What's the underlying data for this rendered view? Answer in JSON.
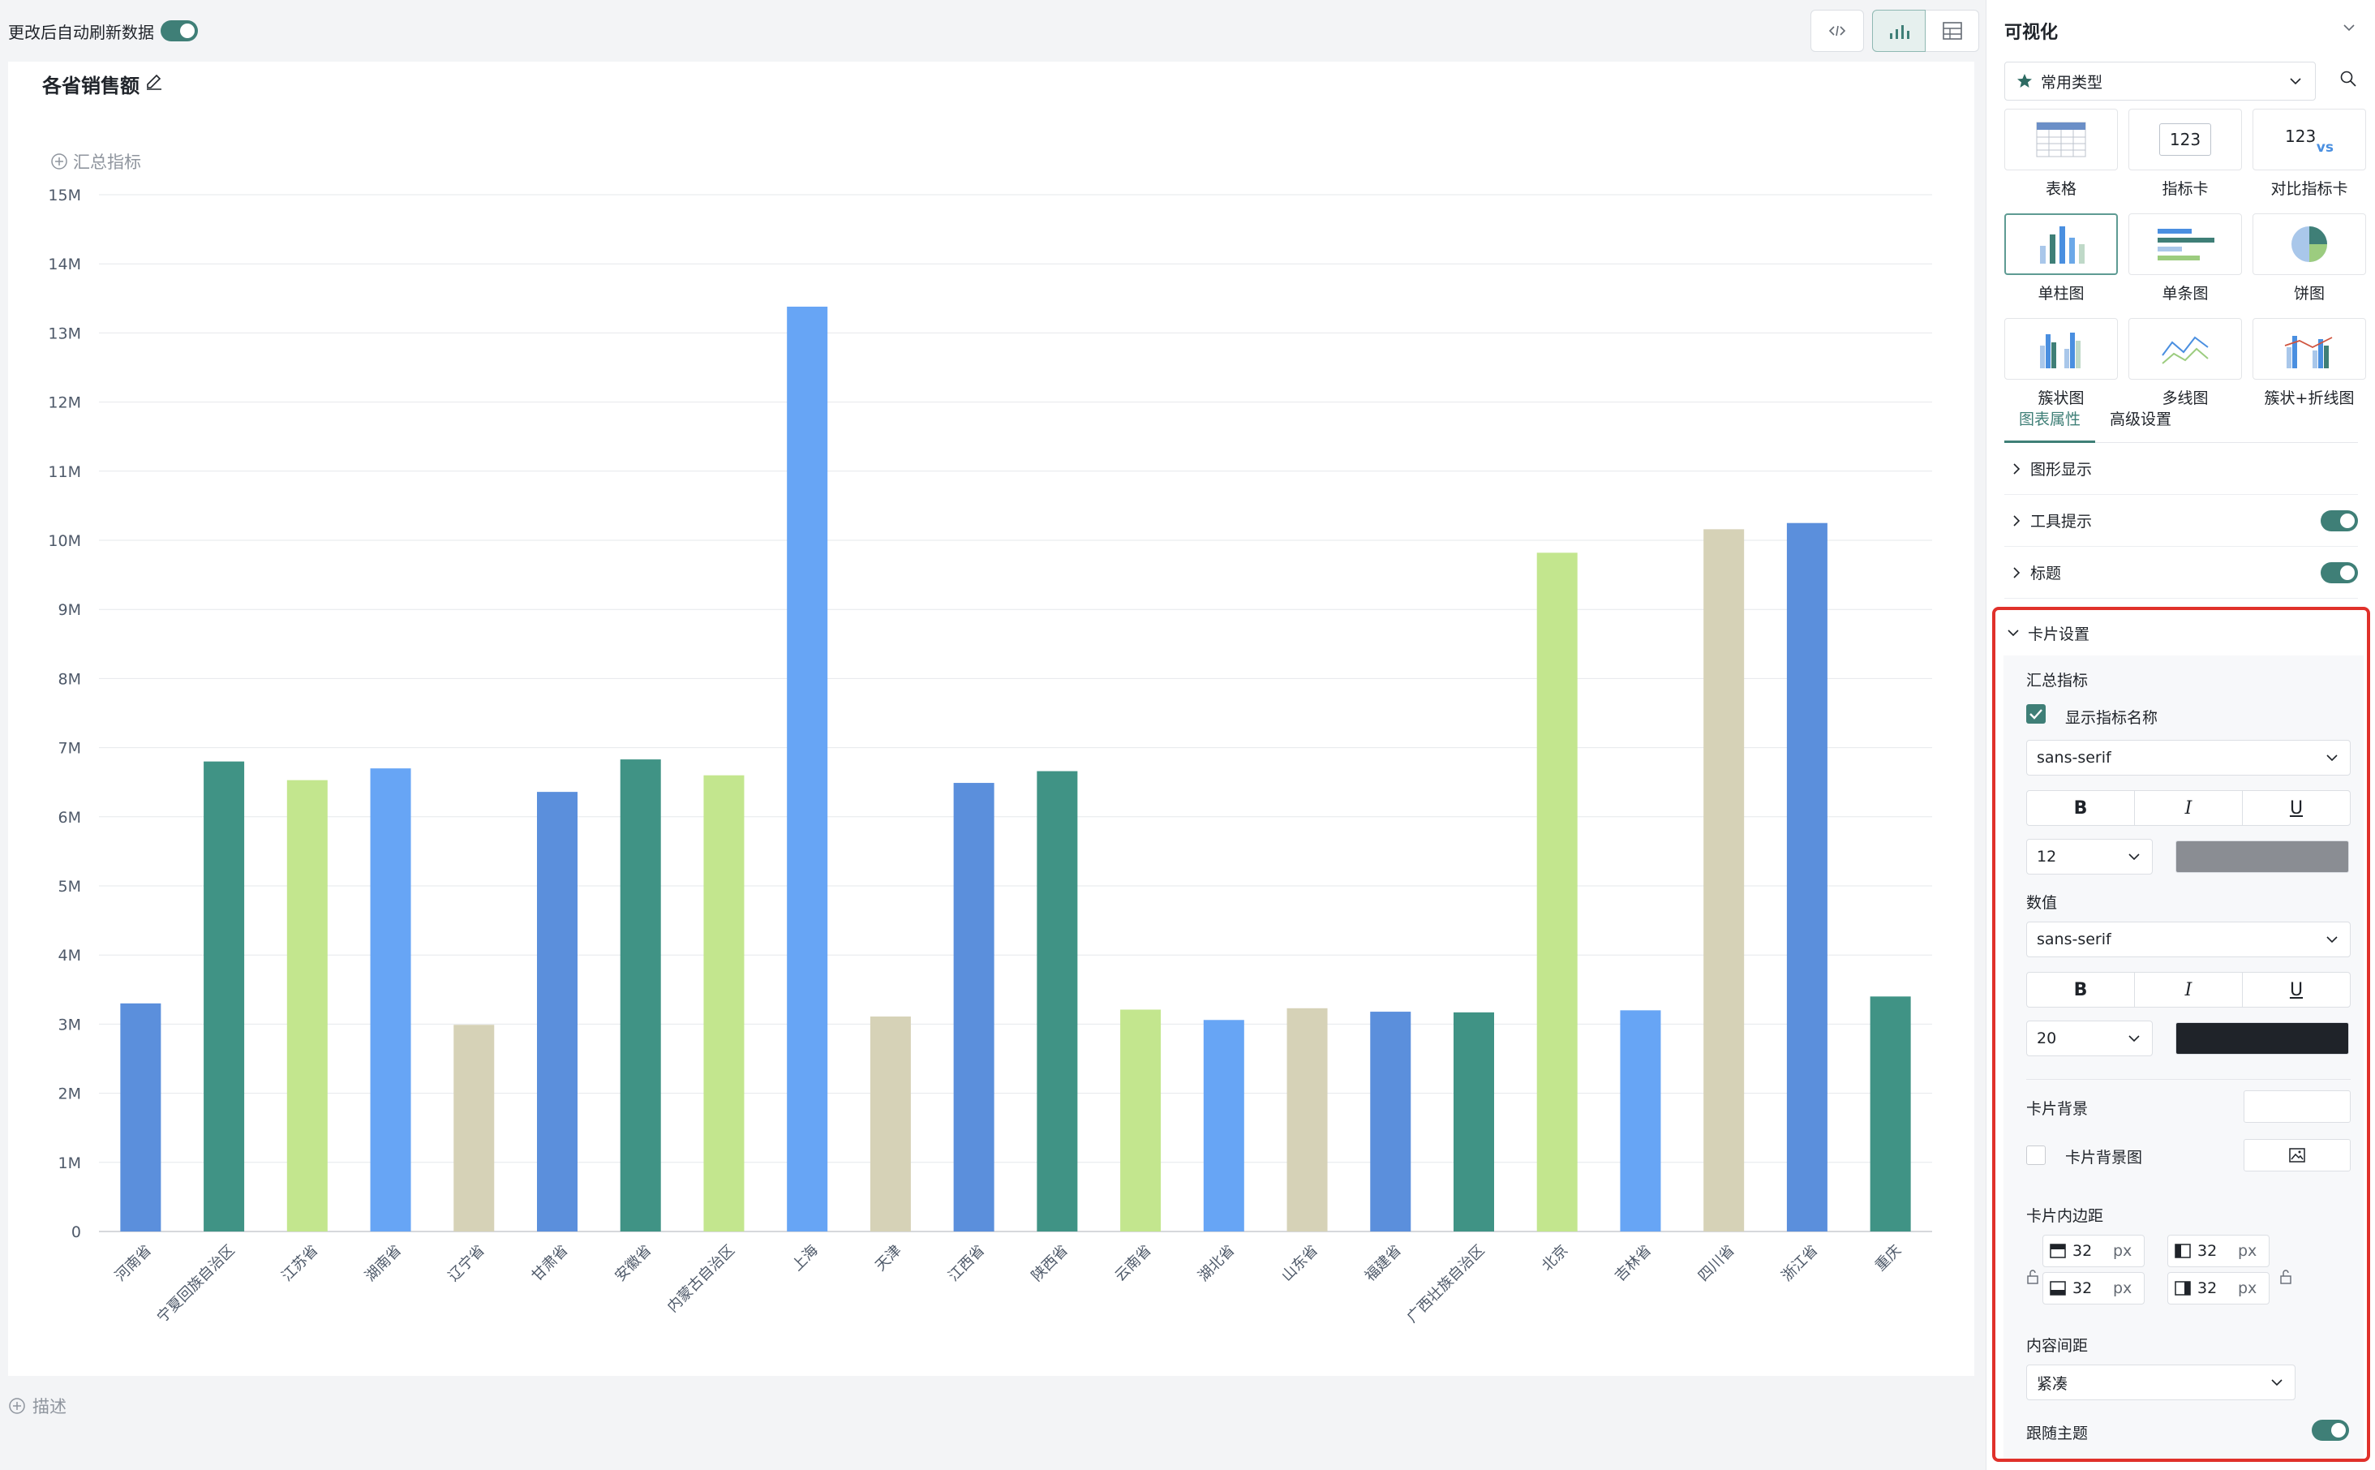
{
  "topbar": {
    "auto_refresh_label": "更改后自动刷新数据",
    "auto_refresh_on": true
  },
  "card": {
    "title": "各省销售额",
    "summary_label": "汇总指标",
    "description_label": "描述"
  },
  "chart_data": {
    "type": "bar",
    "title": "",
    "xlabel": "",
    "ylabel": "",
    "ylim": [
      0,
      15000000
    ],
    "y_ticks": [
      "0",
      "1M",
      "2M",
      "3M",
      "4M",
      "5M",
      "6M",
      "7M",
      "8M",
      "9M",
      "10M",
      "11M",
      "12M",
      "13M",
      "14M",
      "15M"
    ],
    "categories": [
      "河南省",
      "宁夏回族自治区",
      "江苏省",
      "湖南省",
      "辽宁省",
      "甘肃省",
      "安徽省",
      "内蒙古自治区",
      "上海",
      "天津",
      "江西省",
      "陕西省",
      "云南省",
      "湖北省",
      "山东省",
      "福建省",
      "广西壮族自治区",
      "北京",
      "吉林省",
      "四川省",
      "浙江省",
      "重庆"
    ],
    "values": [
      3300000,
      6800000,
      6530000,
      6700000,
      2990000,
      6360000,
      6830000,
      6600000,
      13380000,
      3110000,
      6490000,
      6660000,
      3210000,
      3060000,
      3230000,
      3180000,
      3170000,
      9820000,
      3200000,
      10160000,
      10250000,
      3400000
    ],
    "colors": [
      "#5b8fdc",
      "#409385",
      "#c3e68e",
      "#67a5f5",
      "#d6d2b7",
      "#5b8fdc",
      "#409385",
      "#c3e68e",
      "#67a5f5",
      "#d6d2b7",
      "#5b8fdc",
      "#409385",
      "#c3e68e",
      "#67a5f5",
      "#d6d2b7",
      "#5b8fdc",
      "#409385",
      "#c3e68e",
      "#67a5f5",
      "#d6d2b7",
      "#5b8fdc",
      "#409385"
    ],
    "grid": true
  },
  "panel": {
    "title": "可视化",
    "type_select": "常用类型",
    "vis_types": [
      {
        "label": "表格",
        "icon": "table-icon"
      },
      {
        "label": "指标卡",
        "icon": "metric-card-icon"
      },
      {
        "label": "对比指标卡",
        "icon": "compare-metric-card-icon"
      },
      {
        "label": "单柱图",
        "icon": "bar-chart-icon"
      },
      {
        "label": "单条图",
        "icon": "horizontal-bar-icon"
      },
      {
        "label": "饼图",
        "icon": "pie-chart-icon"
      },
      {
        "label": "簇状图",
        "icon": "clustered-bar-icon"
      },
      {
        "label": "多线图",
        "icon": "multi-line-icon"
      },
      {
        "label": "簇状+折线图",
        "icon": "combo-chart-icon"
      }
    ],
    "metric_glyph": "123",
    "vs_glyph": "vs",
    "tabs": [
      "图表属性",
      "高级设置"
    ],
    "sections": {
      "graphic_display": "图形显示",
      "tooltip": "工具提示",
      "title": "标题",
      "card_settings": "卡片设置"
    },
    "card_settings": {
      "summary_metric": "汇总指标",
      "show_metric_name": "显示指标名称",
      "font_family_1": "sans-serif",
      "font_size_1": "12",
      "color_1": "#8a8d93",
      "value_label": "数值",
      "font_family_2": "sans-serif",
      "font_size_2": "20",
      "color_2": "#1f2329",
      "card_bg": "卡片背景",
      "card_bg_image": "卡片背景图",
      "card_padding": "卡片内边距",
      "padding_top": "32",
      "padding_left": "32",
      "padding_bottom": "32",
      "padding_right": "32",
      "unit": "px",
      "content_spacing": "内容间距",
      "spacing_value": "紧凑",
      "follow_theme": "跟随主题"
    },
    "format_buttons": {
      "bold": "B",
      "italic": "I",
      "underline": "U"
    }
  }
}
